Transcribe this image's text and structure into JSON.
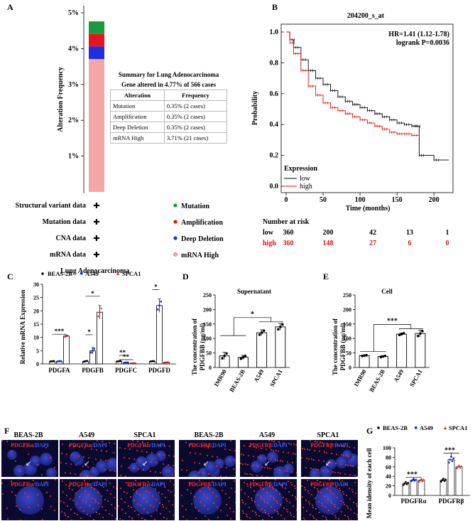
{
  "panels": {
    "A": "A",
    "B": "B",
    "C": "C",
    "D": "D",
    "E": "E",
    "F": "F",
    "G": "G"
  },
  "panelA": {
    "ylabel": "Alteration Frequency",
    "yticks": [
      "5%",
      "4%",
      "3%",
      "2%",
      "1%"
    ],
    "legend": [
      "Mutation",
      "Amplification",
      "Deep Deletion",
      "mRNA High"
    ],
    "rows": [
      "Structural variant data",
      "Mutation data",
      "CNA data",
      "mRNA data"
    ],
    "plus": "✚",
    "xlabel": "Lung Adenocarcinoma",
    "table": {
      "title": "Summary for Lung Adenocarcinoma",
      "subtitle": "Gene altered in 4.77% of 566 cases",
      "headers": [
        "Alteration",
        "Frequency"
      ],
      "rows": [
        [
          "Mutation",
          "0.35% (2 cases)"
        ],
        [
          "Amplification",
          "0.35% (2 cases)"
        ],
        [
          "Deep Deletion",
          "0.35% (2 cases)"
        ],
        [
          "mRNA High",
          "3.71% (21 cases)"
        ]
      ]
    }
  },
  "panelB": {
    "title": "204200_s_at",
    "hr": "HR=1.41 (1.12-1.78)",
    "logrank": "logrank P=0.0036",
    "ylabel": "Probability",
    "xlabel": "Time (months)",
    "yticks": [
      "1.0",
      "0.8",
      "0.6",
      "0.4",
      "0.2",
      "0.0"
    ],
    "xticks": [
      "0",
      "50",
      "100",
      "150",
      "200"
    ],
    "legend_title": "Expression",
    "legend": [
      "low",
      "high"
    ],
    "risk_title": "Number at risk",
    "risk_low_label": "low",
    "risk_high_label": "high",
    "risk_low": [
      "360",
      "200",
      "42",
      "13",
      "1"
    ],
    "risk_high": [
      "360",
      "148",
      "27",
      "6",
      "0"
    ]
  },
  "panelC": {
    "ylabel": "Relative mRNA Expression",
    "legend": [
      "BEAS-2B",
      "A549",
      "SPCA1"
    ],
    "yticks": [
      "0",
      "5",
      "10",
      "15",
      "20",
      "25",
      "30"
    ],
    "categories": [
      "PDGFA",
      "PDGFB",
      "PDGFC",
      "PDGFD"
    ],
    "sig": [
      "***",
      "*",
      "*",
      "**",
      "**",
      "*"
    ]
  },
  "panelD": {
    "title": "Supernatant",
    "ylabel1": "The concentration of",
    "ylabel2": "PDGFBB (pg/ml)",
    "yticks": [
      "0",
      "50",
      "100",
      "150",
      "200",
      "250"
    ],
    "categories": [
      "IMR90",
      "BEAS-2B",
      "A549",
      "SPCA1"
    ],
    "sig": "*"
  },
  "panelE": {
    "title": "Cell",
    "ylabel1": "The concentration of",
    "ylabel2": "PDGFBB (pg/ml)",
    "yticks": [
      "0",
      "50",
      "100",
      "150",
      "200",
      "250"
    ],
    "categories": [
      "IMR90",
      "BEAS-2B",
      "A549",
      "SPCA1"
    ],
    "sig": "***"
  },
  "panelF": {
    "col_titles": [
      "BEAS-2B",
      "A549",
      "SPCA1",
      "BEAS-2B",
      "A549",
      "SPCA1"
    ],
    "stain_a": "PDGFRα",
    "stain_b": "PDGFRβ",
    "sep": "/",
    "dapi": "DAPI"
  },
  "panelG": {
    "legend": [
      "BEAS-2B",
      "A549",
      "SPCA1"
    ],
    "ylabel": "Mean idensity of each cell",
    "yticks": [
      "0",
      "20",
      "40",
      "60",
      "80",
      "100"
    ],
    "categories": [
      "PDGFRα",
      "PDGFRβ"
    ],
    "sig": [
      "***",
      "***"
    ]
  },
  "chart_data": [
    {
      "type": "bar",
      "id": "A",
      "title": "",
      "ylabel": "Alteration Frequency",
      "ylim": [
        0,
        5
      ],
      "categories": [
        "Lung Adenocarcinoma"
      ],
      "series": [
        {
          "name": "mRNA High",
          "values": [
            3.71
          ],
          "color": "#f4a6a6"
        },
        {
          "name": "Deep Deletion",
          "values": [
            0.35
          ],
          "color": "#1f2fe0"
        },
        {
          "name": "Amplification",
          "values": [
            0.35
          ],
          "color": "#e8141c"
        },
        {
          "name": "Mutation",
          "values": [
            0.35
          ],
          "color": "#1a9a3a"
        }
      ]
    },
    {
      "type": "line",
      "id": "B",
      "title": "204200_s_at",
      "xlabel": "Time (months)",
      "ylabel": "Probability",
      "xlim": [
        0,
        225
      ],
      "ylim": [
        0,
        1
      ],
      "series": [
        {
          "name": "low",
          "color": "#000000",
          "x": [
            0,
            5,
            10,
            20,
            30,
            40,
            50,
            60,
            70,
            80,
            90,
            100,
            110,
            120,
            130,
            140,
            150,
            160,
            170,
            175,
            180,
            200,
            220
          ],
          "y": [
            1,
            0.95,
            0.9,
            0.82,
            0.75,
            0.7,
            0.66,
            0.62,
            0.58,
            0.55,
            0.53,
            0.51,
            0.49,
            0.47,
            0.45,
            0.43,
            0.41,
            0.4,
            0.39,
            0.39,
            0.2,
            0.17,
            0.17
          ]
        },
        {
          "name": "high",
          "color": "#e01010",
          "x": [
            0,
            5,
            10,
            20,
            30,
            40,
            50,
            60,
            70,
            80,
            90,
            100,
            110,
            120,
            130,
            140,
            150,
            160,
            170,
            180
          ],
          "y": [
            1,
            0.93,
            0.86,
            0.75,
            0.65,
            0.59,
            0.54,
            0.51,
            0.49,
            0.47,
            0.45,
            0.43,
            0.41,
            0.39,
            0.37,
            0.35,
            0.34,
            0.34,
            0.33,
            0.33
          ]
        }
      ]
    },
    {
      "type": "bar",
      "id": "C",
      "ylabel": "Relative mRNA Expression",
      "ylim": [
        0,
        30
      ],
      "categories": [
        "PDGFA",
        "PDGFB",
        "PDGFC",
        "PDGFD"
      ],
      "series": [
        {
          "name": "BEAS-2B",
          "values": [
            1,
            1,
            1,
            1
          ],
          "err": [
            0.1,
            0.2,
            0.1,
            0.1
          ]
        },
        {
          "name": "A549",
          "values": [
            1,
            5,
            0.5,
            22
          ],
          "err": [
            0.1,
            1.2,
            0.1,
            2.5
          ]
        },
        {
          "name": "SPCA1",
          "values": [
            10.5,
            19.5,
            0.3,
            0.6
          ],
          "err": [
            0.3,
            2.5,
            0.05,
            0.1
          ]
        }
      ]
    },
    {
      "type": "bar",
      "id": "D",
      "title": "Supernatant",
      "ylim": [
        0,
        250
      ],
      "categories": [
        "IMR90",
        "BEAS-2B",
        "A549",
        "SPCA1"
      ],
      "values": [
        40,
        35,
        120,
        140
      ],
      "err": [
        12,
        7,
        10,
        12
      ]
    },
    {
      "type": "bar",
      "id": "E",
      "title": "Cell",
      "ylim": [
        0,
        250
      ],
      "categories": [
        "IMR90",
        "BEAS-2B",
        "A549",
        "SPCA1"
      ],
      "values": [
        41,
        38,
        115,
        117
      ],
      "err": [
        2,
        3,
        4,
        12
      ]
    },
    {
      "type": "scatter",
      "id": "G",
      "ylabel": "Mean idensity of each cell",
      "ylim": [
        0,
        100
      ],
      "categories": [
        "PDGFRα",
        "PDGFRβ"
      ],
      "series": [
        {
          "name": "BEAS-2B",
          "values": [
            25,
            32
          ],
          "err": [
            3,
            3
          ]
        },
        {
          "name": "A549",
          "values": [
            32,
            75
          ],
          "err": [
            2,
            6
          ]
        },
        {
          "name": "SPCA1",
          "values": [
            32,
            60
          ],
          "err": [
            3,
            3
          ]
        }
      ]
    }
  ]
}
